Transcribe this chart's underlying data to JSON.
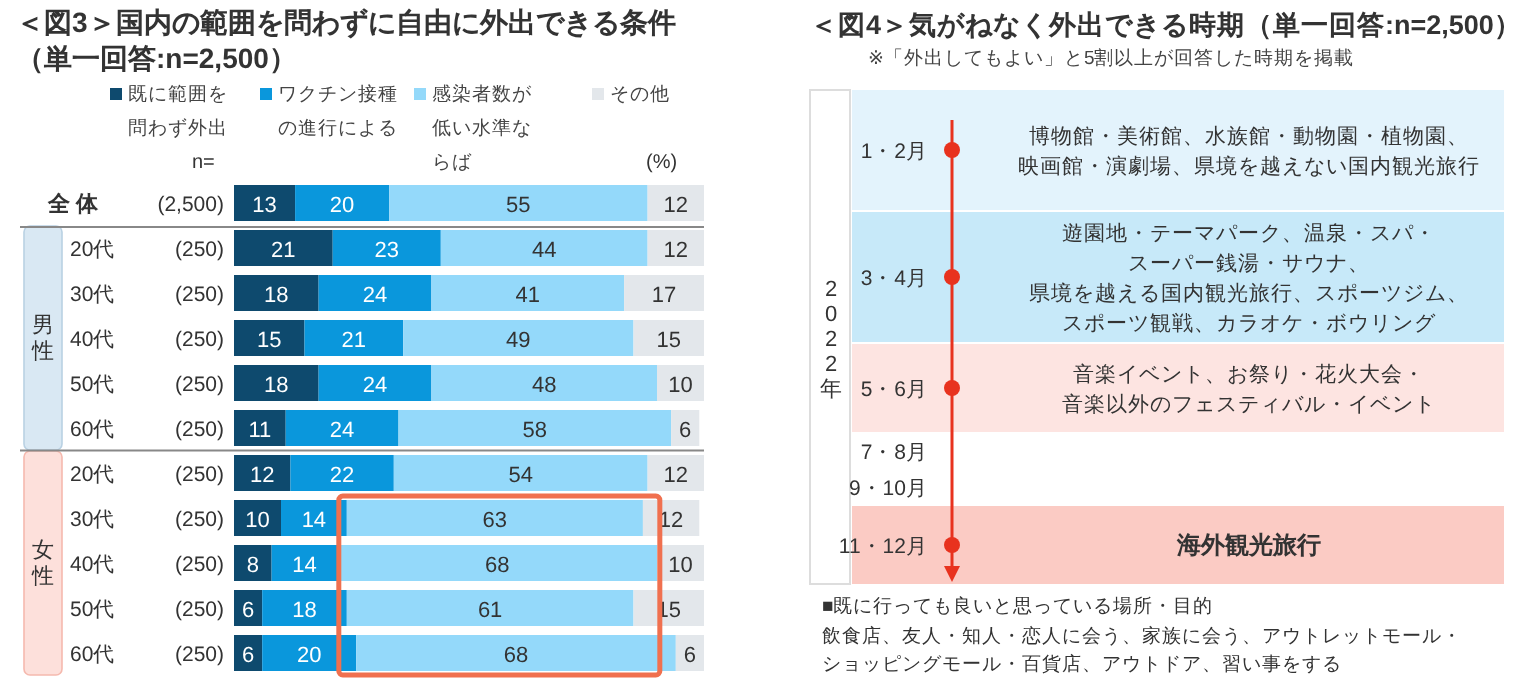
{
  "chart_data": [
    {
      "type": "bar",
      "orientation": "horizontal",
      "stacked": true,
      "data_labels": true,
      "legend": "top",
      "title": "＜図3＞国内の範囲を問わずに自由に外出できる条件（単一回答:n=2,500）",
      "categories": [
        "全 体 (2,500)",
        "20代 (250)",
        "30代 (250)",
        "40代 (250)",
        "50代 (250)",
        "60代 (250)",
        "20代 (250)",
        "30代 (250)",
        "40代 (250)",
        "50代 (250)",
        "60代 (250)"
      ],
      "series": [
        {
          "name": "既に範囲を問わず外出",
          "color": "#0e4a6e",
          "values": [
            13,
            21,
            18,
            15,
            18,
            11,
            12,
            10,
            8,
            6,
            6
          ]
        },
        {
          "name": "ワクチン接種の進行による",
          "color": "#0a97dc",
          "values": [
            20,
            23,
            24,
            21,
            24,
            24,
            22,
            14,
            14,
            18,
            20
          ]
        },
        {
          "name": "感染者数が低い水準ならば",
          "color": "#94d9fa",
          "values": [
            55,
            44,
            41,
            49,
            48,
            58,
            54,
            63,
            68,
            61,
            68
          ]
        },
        {
          "name": "その他",
          "color": "#e3e7eb",
          "values": [
            12,
            12,
            17,
            15,
            10,
            6,
            12,
            12,
            10,
            15,
            6
          ]
        }
      ],
      "annotations": [
        "n=",
        "(%)",
        "男性",
        "女性"
      ]
    },
    {
      "type": "other",
      "title": "＜図4＞気がねなく外出できる時期（単一回答:n=2,500）",
      "subtitle": "※「外出してもよい」と5割以上が回答した時期を掲載",
      "annotations": [
        "2022年",
        "1・2月",
        "博物館・美術館、水族館・動物園・植物園、映画館・演劇場、県境を越えない国内観光旅行",
        "3・4月",
        "遊園地・テーマパーク、温泉・スパ・スーパー銭湯・サウナ、県境を越える国内観光旅行、スポーツジム、スポーツ観戦、カラオケ・ボウリング",
        "5・6月",
        "音楽イベント、お祭り・花火大会・音楽以外のフェスティバル・イベント",
        "7・8月",
        "9・10月",
        "11・12月",
        "海外観光旅行",
        "■既に行っても良いと思っている場所・目的",
        "飲食店、友人・知人・恋人に会う、家族に会う、アウトレットモール・ショッピングモール・百貨店、アウトドア、習い事をする"
      ]
    }
  ]
}
